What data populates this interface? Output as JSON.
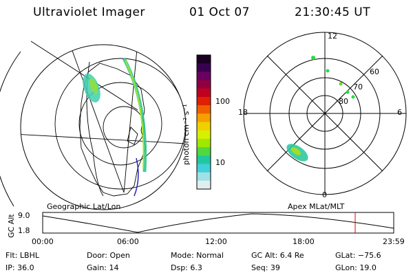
{
  "header": {
    "instrument": "Ultraviolet Imager",
    "date": "01 Oct 07",
    "time": "21:30:45 UT"
  },
  "colorbar": {
    "unit_label": "photon cm⁻² s⁻¹",
    "ticks": [
      "100",
      "10"
    ],
    "colors": [
      "#1a0022",
      "#3a0050",
      "#6a0060",
      "#900040",
      "#c00020",
      "#e02000",
      "#f06000",
      "#f5a000",
      "#f0d000",
      "#d8f000",
      "#a0e800",
      "#50d840",
      "#20c8a0",
      "#40d0d8",
      "#a0e0e8",
      "#e0eef0"
    ]
  },
  "polar": {
    "mlt_labels": {
      "top": "12",
      "left": "18",
      "right": "6",
      "bottom": "0"
    },
    "lat_labels": [
      "60",
      "70",
      "80"
    ]
  },
  "orbit": {
    "y_label": "GC Alt",
    "y_ticks": [
      "9.0",
      "1.8"
    ],
    "left_title": "Geographic Lat/Lon",
    "right_title": "Apex MLat/MLT",
    "x_ticks": [
      "00:00",
      "06:00",
      "12:00",
      "18:00",
      "23:59"
    ]
  },
  "info": {
    "filter": "Flt: LBHL",
    "ip": "IP: 36.0",
    "door": "Door: Open",
    "gain": "Gain: 14",
    "mode": "Mode: Normal",
    "dsp": "Dsp:     6.3",
    "gc_alt": "GC Alt: 6.4 Re",
    "seq": "Seq: 39",
    "glat": "GLat: −75.6",
    "glon": "GLon:  19.0"
  }
}
